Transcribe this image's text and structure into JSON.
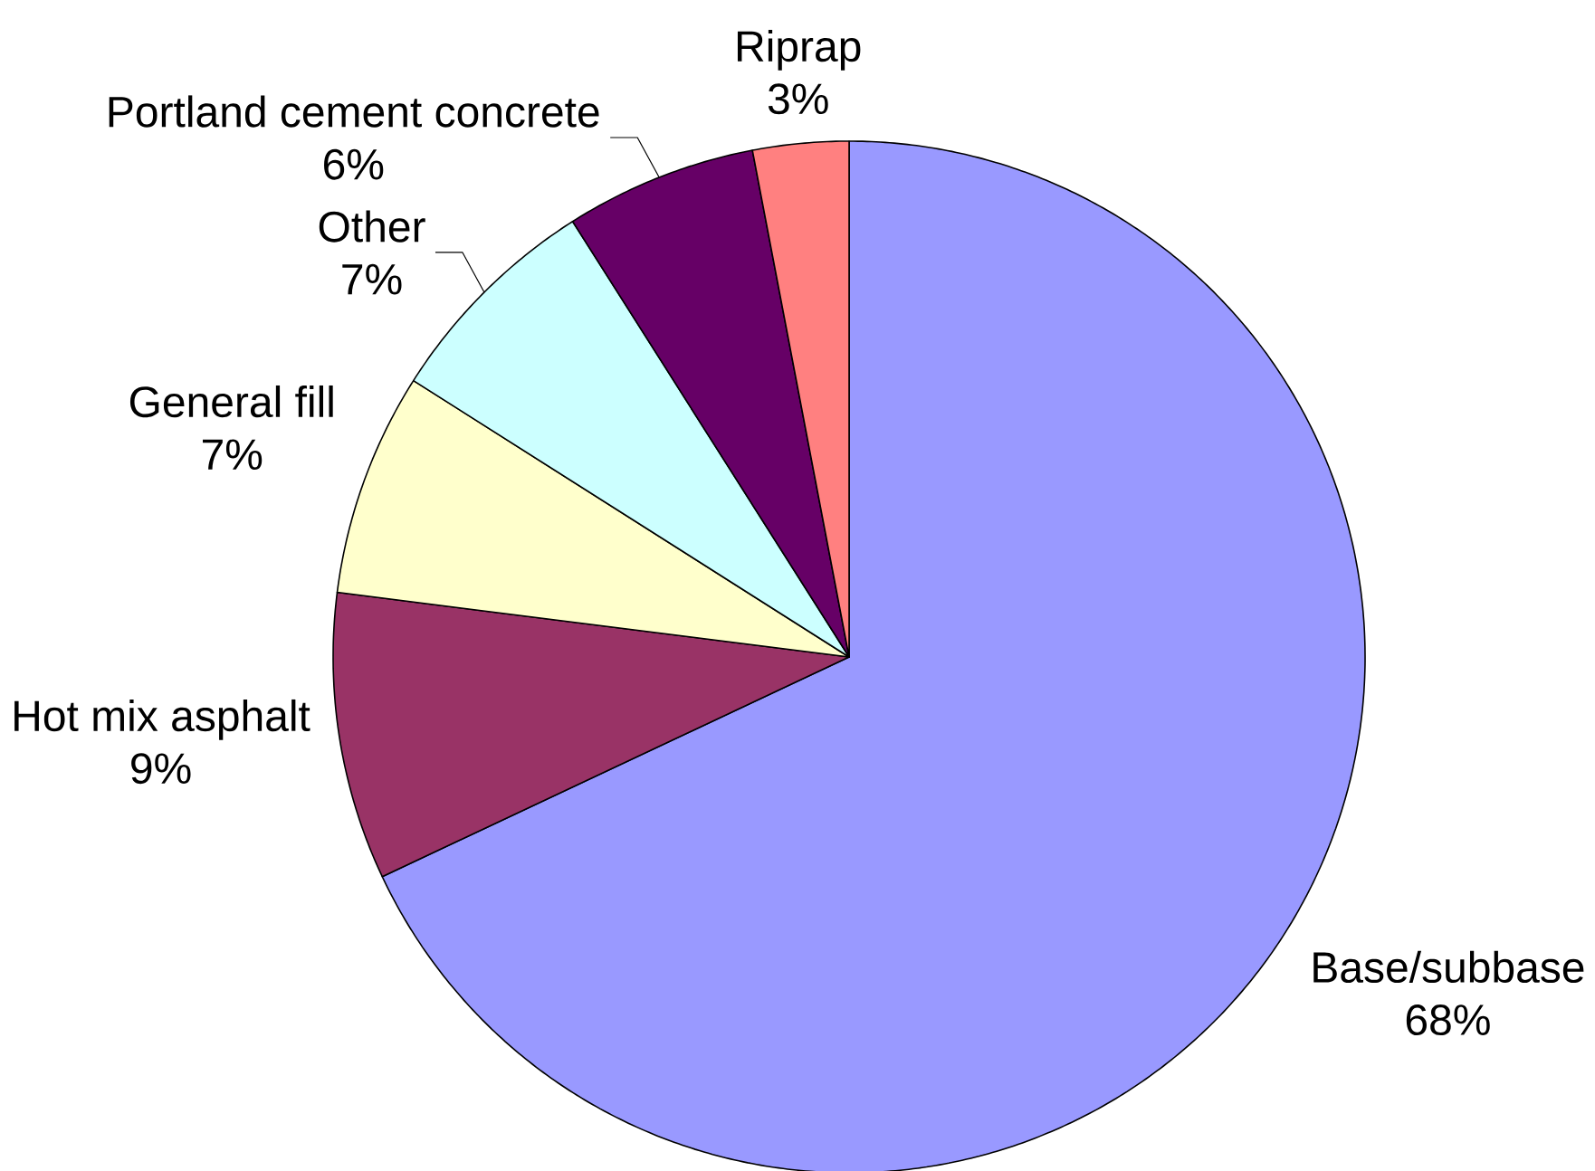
{
  "chart_data": {
    "type": "pie",
    "categories": [
      "Base/subbase",
      "Hot mix asphalt",
      "General fill",
      "Other",
      "Portland cement concrete",
      "Riprap"
    ],
    "values": [
      68,
      9,
      7,
      7,
      6,
      3
    ],
    "colors": [
      "#9999ff",
      "#993366",
      "#ffffcc",
      "#ccffff",
      "#660066",
      "#ff8080"
    ],
    "value_labels": [
      "68%",
      "9%",
      "7%",
      "7%",
      "6%",
      "3%"
    ]
  }
}
